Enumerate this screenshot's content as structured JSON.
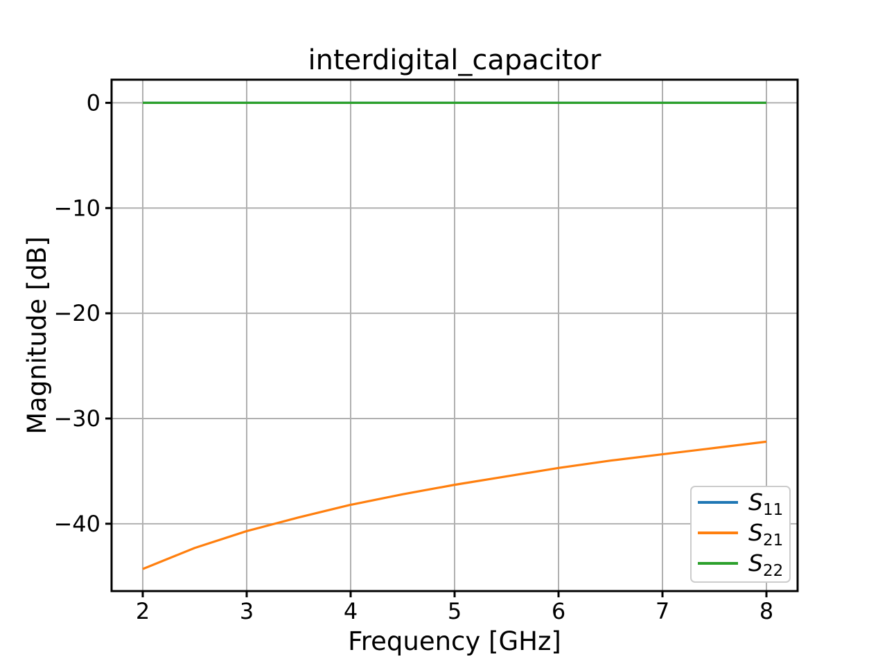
{
  "figure": {
    "background": "#ffffff",
    "plot_background": "#ffffff",
    "spine_color": "#000000"
  },
  "chart_data": {
    "type": "line",
    "title": "interdigital_capacitor",
    "xlabel": "Frequency [GHz]",
    "ylabel": "Magnitude [dB]",
    "xlim": [
      1.7,
      8.3
    ],
    "ylim": [
      -46.4,
      2.2
    ],
    "xticks": [
      2,
      3,
      4,
      5,
      6,
      7,
      8
    ],
    "xtick_labels": [
      "2",
      "3",
      "4",
      "5",
      "6",
      "7",
      "8"
    ],
    "yticks": [
      0,
      -10,
      -20,
      -30,
      -40
    ],
    "ytick_labels": [
      "0",
      "−10",
      "−20",
      "−30",
      "−40"
    ],
    "grid": true,
    "grid_color": "#b0b0b0",
    "x": [
      2,
      2.5,
      3,
      3.5,
      4,
      4.5,
      5,
      5.5,
      6,
      6.5,
      7,
      7.5,
      8
    ],
    "series": [
      {
        "name": "S11",
        "legend_base": "S",
        "legend_sub": "11",
        "color": "#1f77b4",
        "values": [
          0,
          0,
          0,
          0,
          0,
          0,
          0,
          0,
          0,
          0,
          0,
          0,
          0
        ]
      },
      {
        "name": "S21",
        "legend_base": "S",
        "legend_sub": "21",
        "color": "#ff7f0e",
        "values": [
          -44.3,
          -42.3,
          -40.7,
          -39.4,
          -38.2,
          -37.2,
          -36.3,
          -35.5,
          -34.7,
          -34.0,
          -33.4,
          -32.8,
          -32.2
        ]
      },
      {
        "name": "S22",
        "legend_base": "S",
        "legend_sub": "22",
        "color": "#2ca02c",
        "values": [
          0,
          0,
          0,
          0,
          0,
          0,
          0,
          0,
          0,
          0,
          0,
          0,
          0
        ]
      }
    ],
    "legend": {
      "position": "lower right",
      "border_color": "#cccccc",
      "background": "#ffffff",
      "entries": [
        {
          "base": "S",
          "sub": "11",
          "color": "#1f77b4"
        },
        {
          "base": "S",
          "sub": "21",
          "color": "#ff7f0e"
        },
        {
          "base": "S",
          "sub": "22",
          "color": "#2ca02c"
        }
      ]
    }
  }
}
